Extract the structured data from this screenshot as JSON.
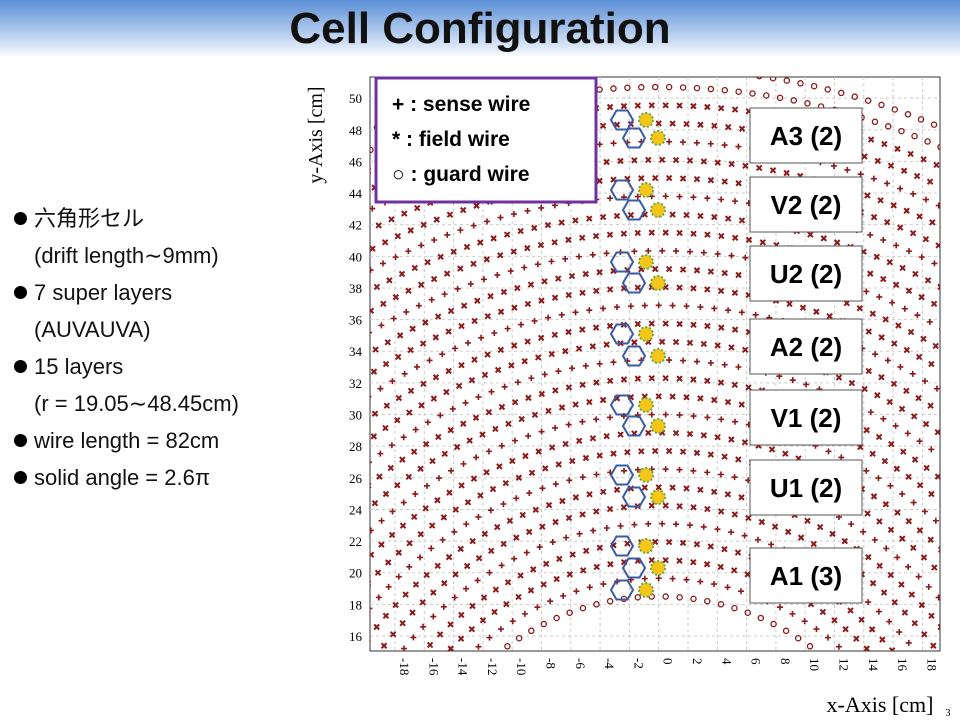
{
  "header": {
    "title": "Cell Configuration"
  },
  "bullets": [
    {
      "text": "六角形セル",
      "sub": "(drift length∼9mm)"
    },
    {
      "text": "7 super layers",
      "sub": "(AUVAUVA)"
    },
    {
      "text": "15 layers",
      "sub": "(r = 19.05∼48.45cm)"
    },
    {
      "text": "wire length = 82cm"
    },
    {
      "text": "solid angle = 2.6π"
    }
  ],
  "plot": {
    "y_axis_label": "y-Axis [cm]",
    "x_axis_label": "x-Axis [cm]",
    "yticks": [
      50,
      48,
      46,
      44,
      42,
      40,
      38,
      36,
      34,
      32,
      30,
      28,
      26,
      24,
      22,
      20,
      18,
      16
    ],
    "xticks": [
      -18,
      -16,
      -14,
      -12,
      -10,
      -8,
      -6,
      -4,
      -2,
      0,
      2,
      4,
      6,
      8,
      10,
      12,
      14,
      16,
      18
    ],
    "legend": [
      "+ : sense wire",
      "* : field wire",
      "○ : guard wire"
    ],
    "layer_labels": [
      "A3 (2)",
      "V2 (2)",
      "U2 (2)",
      "A2 (2)",
      "V1 (2)",
      "U1 (2)",
      "A1 (3)"
    ]
  },
  "page_number": "3"
}
